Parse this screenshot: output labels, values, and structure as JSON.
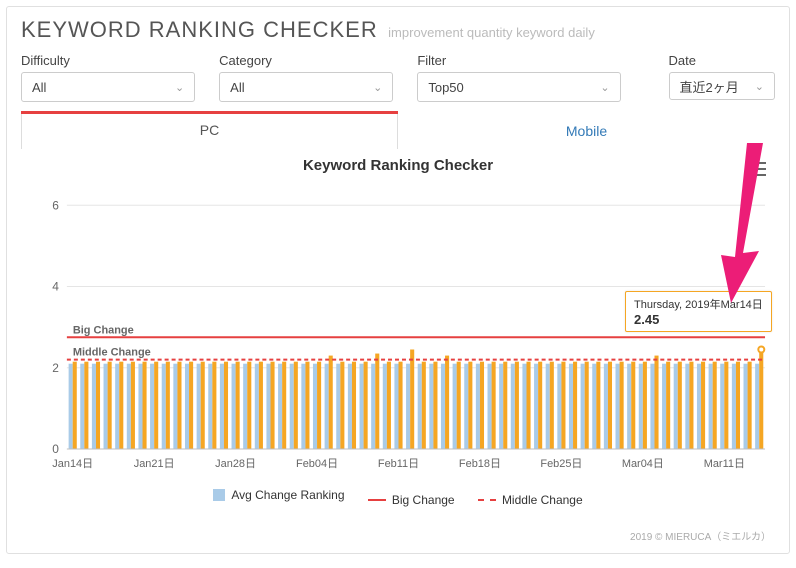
{
  "header": {
    "title": "KEYWORD RANKING CHECKER",
    "subtitle": "improvement quantity keyword daily"
  },
  "filters": {
    "difficulty": {
      "label": "Difficulty",
      "value": "All"
    },
    "category": {
      "label": "Category",
      "value": "All"
    },
    "filter": {
      "label": "Filter",
      "value": "Top50"
    },
    "date": {
      "label": "Date",
      "value": "直近2ヶ月"
    }
  },
  "tabs": {
    "pc": "PC",
    "mobile": "Mobile",
    "active": "pc"
  },
  "chart": {
    "title": "Keyword Ranking Checker",
    "type": "bar+line",
    "ylim": [
      0,
      6.5
    ],
    "yticks": [
      0,
      2,
      4,
      6
    ],
    "big_change": {
      "label": "Big Change",
      "value": 2.75,
      "color": "#e64040"
    },
    "middle_change": {
      "label": "Middle Change",
      "value": 2.2,
      "color": "#e64040"
    },
    "bar_colors": {
      "avg": "#a9cbe8",
      "orange": "#f5a623"
    },
    "grid_color": "#e5e5e5",
    "background_color": "#ffffff",
    "xlabels": [
      "Jan14日",
      "Jan21日",
      "Jan28日",
      "Feb04日",
      "Feb11日",
      "Feb18日",
      "Feb25日",
      "Mar04日",
      "Mar11日"
    ],
    "n_days": 60,
    "avg_series_approx": 2.1,
    "orange_series_approx": 2.15,
    "orange_spikes": {
      "22": 2.3,
      "26": 2.35,
      "29": 2.45,
      "32": 2.3,
      "50": 2.3,
      "59": 2.45
    }
  },
  "legend": {
    "avg": "Avg Change Ranking",
    "big": "Big Change",
    "mid": "Middle Change"
  },
  "tooltip": {
    "date": "Thursday, 2019年Mar14日",
    "value": "2.45"
  },
  "arrow_color": "#ec1d77",
  "copyright": "2019 © MIERUCA（ミエルカ）"
}
